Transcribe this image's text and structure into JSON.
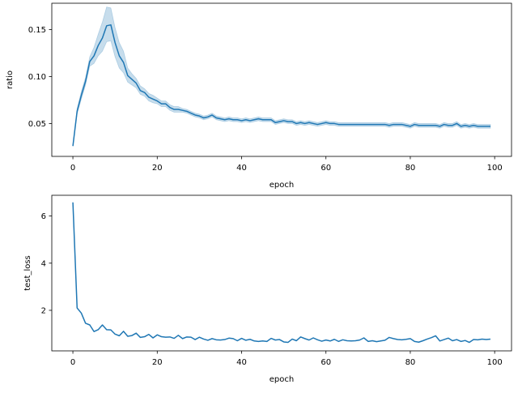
{
  "chart_data": [
    {
      "type": "line",
      "xlabel": "epoch",
      "ylabel": "ratio",
      "xlim": [
        -5,
        104
      ],
      "ylim": [
        0.015,
        0.178
      ],
      "x_ticks": [
        0,
        20,
        40,
        60,
        80,
        100
      ],
      "x_tick_labels": [
        "0",
        "20",
        "40",
        "60",
        "80",
        "100"
      ],
      "y_ticks": [
        0.05,
        0.1,
        0.15
      ],
      "y_tick_labels": [
        "0.05",
        "0.10",
        "0.15"
      ],
      "grid": false,
      "series": [
        {
          "color": "#1f77b4",
          "band_color": "#1f77b4",
          "x": [
            0,
            1,
            2,
            3,
            4,
            5,
            6,
            7,
            8,
            9,
            10,
            11,
            12,
            13,
            14,
            15,
            16,
            17,
            18,
            19,
            20,
            21,
            22,
            23,
            24,
            25,
            26,
            27,
            28,
            29,
            30,
            31,
            32,
            33,
            34,
            35,
            36,
            37,
            38,
            39,
            40,
            41,
            42,
            43,
            44,
            45,
            46,
            47,
            48,
            49,
            50,
            51,
            52,
            53,
            54,
            55,
            56,
            57,
            58,
            59,
            60,
            61,
            62,
            63,
            64,
            65,
            66,
            67,
            68,
            69,
            70,
            71,
            72,
            73,
            74,
            75,
            76,
            77,
            78,
            79,
            80,
            81,
            82,
            83,
            84,
            85,
            86,
            87,
            88,
            89,
            90,
            91,
            92,
            93,
            94,
            95,
            96,
            97,
            98,
            99
          ],
          "values": [
            0.026,
            0.063,
            0.08,
            0.095,
            0.116,
            0.122,
            0.133,
            0.141,
            0.154,
            0.155,
            0.136,
            0.122,
            0.115,
            0.101,
            0.097,
            0.093,
            0.085,
            0.083,
            0.078,
            0.076,
            0.074,
            0.071,
            0.071,
            0.067,
            0.065,
            0.065,
            0.064,
            0.063,
            0.061,
            0.059,
            0.058,
            0.056,
            0.057,
            0.059,
            0.056,
            0.055,
            0.054,
            0.055,
            0.054,
            0.054,
            0.053,
            0.054,
            0.053,
            0.054,
            0.055,
            0.054,
            0.054,
            0.054,
            0.051,
            0.052,
            0.053,
            0.052,
            0.052,
            0.05,
            0.051,
            0.05,
            0.051,
            0.05,
            0.049,
            0.05,
            0.051,
            0.05,
            0.05,
            0.049,
            0.049,
            0.049,
            0.049,
            0.049,
            0.049,
            0.049,
            0.049,
            0.049,
            0.049,
            0.049,
            0.049,
            0.048,
            0.049,
            0.049,
            0.049,
            0.048,
            0.047,
            0.049,
            0.048,
            0.048,
            0.048,
            0.048,
            0.048,
            0.047,
            0.049,
            0.048,
            0.048,
            0.05,
            0.047,
            0.048,
            0.047,
            0.048,
            0.047,
            0.047,
            0.047,
            0.047
          ],
          "upper": [
            0.026,
            0.066,
            0.084,
            0.099,
            0.121,
            0.131,
            0.145,
            0.158,
            0.174,
            0.173,
            0.152,
            0.136,
            0.127,
            0.109,
            0.103,
            0.098,
            0.09,
            0.087,
            0.082,
            0.08,
            0.077,
            0.074,
            0.074,
            0.07,
            0.068,
            0.068,
            0.066,
            0.065,
            0.063,
            0.061,
            0.06,
            0.058,
            0.059,
            0.061,
            0.058,
            0.057,
            0.056,
            0.057,
            0.056,
            0.056,
            0.055,
            0.056,
            0.055,
            0.056,
            0.057,
            0.056,
            0.056,
            0.056,
            0.053,
            0.054,
            0.055,
            0.054,
            0.054,
            0.052,
            0.053,
            0.052,
            0.053,
            0.052,
            0.051,
            0.052,
            0.053,
            0.052,
            0.052,
            0.051,
            0.051,
            0.051,
            0.051,
            0.051,
            0.051,
            0.051,
            0.051,
            0.051,
            0.051,
            0.051,
            0.051,
            0.05,
            0.051,
            0.051,
            0.051,
            0.05,
            0.049,
            0.051,
            0.05,
            0.05,
            0.05,
            0.05,
            0.05,
            0.049,
            0.051,
            0.05,
            0.05,
            0.052,
            0.049,
            0.05,
            0.049,
            0.05,
            0.049,
            0.049,
            0.049,
            0.049
          ],
          "lower": [
            0.026,
            0.06,
            0.076,
            0.091,
            0.111,
            0.114,
            0.122,
            0.127,
            0.137,
            0.138,
            0.121,
            0.109,
            0.104,
            0.094,
            0.091,
            0.088,
            0.081,
            0.079,
            0.074,
            0.072,
            0.071,
            0.068,
            0.068,
            0.064,
            0.062,
            0.062,
            0.062,
            0.061,
            0.059,
            0.057,
            0.056,
            0.054,
            0.055,
            0.057,
            0.054,
            0.053,
            0.052,
            0.053,
            0.052,
            0.052,
            0.051,
            0.052,
            0.051,
            0.052,
            0.053,
            0.052,
            0.052,
            0.052,
            0.049,
            0.05,
            0.051,
            0.05,
            0.05,
            0.048,
            0.049,
            0.048,
            0.049,
            0.048,
            0.047,
            0.048,
            0.049,
            0.048,
            0.048,
            0.047,
            0.047,
            0.047,
            0.047,
            0.047,
            0.047,
            0.047,
            0.047,
            0.047,
            0.047,
            0.047,
            0.047,
            0.046,
            0.047,
            0.047,
            0.047,
            0.046,
            0.045,
            0.047,
            0.046,
            0.046,
            0.046,
            0.046,
            0.046,
            0.045,
            0.047,
            0.046,
            0.046,
            0.048,
            0.045,
            0.046,
            0.045,
            0.046,
            0.045,
            0.045,
            0.045,
            0.045
          ]
        }
      ]
    },
    {
      "type": "line",
      "xlabel": "epoch",
      "ylabel": "test_loss",
      "xlim": [
        -5,
        104
      ],
      "ylim": [
        0.28,
        6.88
      ],
      "x_ticks": [
        0,
        20,
        40,
        60,
        80,
        100
      ],
      "x_tick_labels": [
        "0",
        "20",
        "40",
        "60",
        "80",
        "100"
      ],
      "y_ticks": [
        2,
        4,
        6
      ],
      "y_tick_labels": [
        "2",
        "4",
        "6"
      ],
      "grid": false,
      "series": [
        {
          "color": "#1f77b4",
          "x": [
            0,
            1,
            2,
            3,
            4,
            5,
            6,
            7,
            8,
            9,
            10,
            11,
            12,
            13,
            14,
            15,
            16,
            17,
            18,
            19,
            20,
            21,
            22,
            23,
            24,
            25,
            26,
            27,
            28,
            29,
            30,
            31,
            32,
            33,
            34,
            35,
            36,
            37,
            38,
            39,
            40,
            41,
            42,
            43,
            44,
            45,
            46,
            47,
            48,
            49,
            50,
            51,
            52,
            53,
            54,
            55,
            56,
            57,
            58,
            59,
            60,
            61,
            62,
            63,
            64,
            65,
            66,
            67,
            68,
            69,
            70,
            71,
            72,
            73,
            74,
            75,
            76,
            77,
            78,
            79,
            80,
            81,
            82,
            83,
            84,
            85,
            86,
            87,
            88,
            89,
            90,
            91,
            92,
            93,
            94,
            95,
            96,
            97,
            98,
            99
          ],
          "values": [
            6.58,
            2.1,
            1.88,
            1.45,
            1.38,
            1.1,
            1.18,
            1.38,
            1.18,
            1.17,
            0.99,
            0.92,
            1.11,
            0.9,
            0.93,
            1.03,
            0.85,
            0.88,
            0.98,
            0.83,
            0.96,
            0.88,
            0.86,
            0.87,
            0.81,
            0.94,
            0.8,
            0.87,
            0.86,
            0.76,
            0.86,
            0.78,
            0.73,
            0.8,
            0.75,
            0.74,
            0.76,
            0.82,
            0.8,
            0.71,
            0.81,
            0.73,
            0.77,
            0.7,
            0.68,
            0.7,
            0.68,
            0.81,
            0.74,
            0.76,
            0.66,
            0.64,
            0.78,
            0.71,
            0.87,
            0.8,
            0.74,
            0.83,
            0.75,
            0.69,
            0.74,
            0.7,
            0.77,
            0.68,
            0.75,
            0.71,
            0.7,
            0.71,
            0.74,
            0.83,
            0.68,
            0.71,
            0.67,
            0.7,
            0.73,
            0.85,
            0.8,
            0.76,
            0.75,
            0.77,
            0.8,
            0.68,
            0.65,
            0.71,
            0.78,
            0.84,
            0.92,
            0.7,
            0.76,
            0.82,
            0.71,
            0.76,
            0.68,
            0.72,
            0.64,
            0.76,
            0.75,
            0.78,
            0.76,
            0.78
          ]
        }
      ]
    }
  ]
}
